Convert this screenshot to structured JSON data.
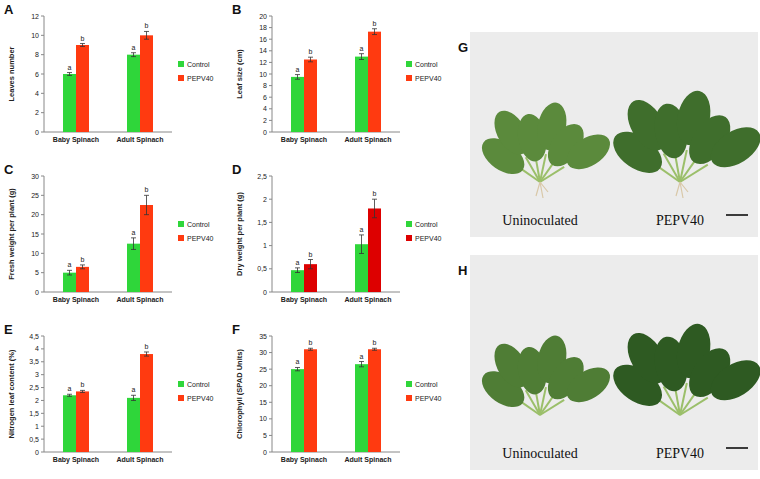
{
  "chart_data": [
    {
      "type": "bar",
      "title": "A",
      "y_label": "Leaves number",
      "categories": [
        "Baby Spinach",
        "Adult Spinach"
      ],
      "series": [
        {
          "name": "Control",
          "color": "#2fd63a",
          "values": [
            6,
            8
          ],
          "errors": [
            0.15,
            0.2
          ],
          "annotations": [
            "a",
            "a"
          ]
        },
        {
          "name": "PEPV40",
          "color": "#ff3a10",
          "values": [
            9,
            10
          ],
          "errors": [
            0.15,
            0.4
          ],
          "annotations": [
            "b",
            "b"
          ]
        }
      ],
      "ylim": [
        0,
        12
      ],
      "yticks": [
        0,
        2,
        4,
        6,
        8,
        10,
        12
      ],
      "grid": false,
      "legend": "right"
    },
    {
      "type": "bar",
      "title": "B",
      "y_label": "Leaf size (cm)",
      "categories": [
        "Baby Spinach",
        "Adult Spinach"
      ],
      "series": [
        {
          "name": "Control",
          "color": "#2fd63a",
          "values": [
            9.5,
            13
          ],
          "errors": [
            0.4,
            0.5
          ],
          "annotations": [
            "a",
            "a"
          ]
        },
        {
          "name": "PEPV40",
          "color": "#ff3a10",
          "values": [
            12.5,
            17.3
          ],
          "errors": [
            0.4,
            0.5
          ],
          "annotations": [
            "b",
            "b"
          ]
        }
      ],
      "ylim": [
        0,
        20
      ],
      "yticks": [
        0,
        2,
        4,
        6,
        8,
        10,
        12,
        14,
        16,
        18,
        20
      ],
      "grid": false,
      "legend": "right"
    },
    {
      "type": "bar",
      "title": "C",
      "y_label": "Fresh weight per plant (g)",
      "categories": [
        "Baby Spinach",
        "Adult Spinach"
      ],
      "series": [
        {
          "name": "Control",
          "color": "#2fd63a",
          "values": [
            5,
            12.5
          ],
          "errors": [
            0.6,
            1.5
          ],
          "annotations": [
            "a",
            "a"
          ]
        },
        {
          "name": "PEPV40",
          "color": "#ff3a10",
          "values": [
            6.5,
            22.5
          ],
          "errors": [
            0.5,
            2.5
          ],
          "annotations": [
            "b",
            "b"
          ]
        }
      ],
      "ylim": [
        0,
        30
      ],
      "yticks": [
        0,
        5,
        10,
        15,
        20,
        25,
        30
      ],
      "grid": false,
      "legend": "right"
    },
    {
      "type": "bar",
      "title": "D",
      "y_label": "Dry weight per plant (g)",
      "categories": [
        "Baby Spinach",
        "Adult Spinach"
      ],
      "series": [
        {
          "name": "Control",
          "color": "#2fd63a",
          "values": [
            0.47,
            1.03
          ],
          "errors": [
            0.05,
            0.2
          ],
          "annotations": [
            "a",
            "a"
          ]
        },
        {
          "name": "PEPV40",
          "color": "#dd0000",
          "values": [
            0.6,
            1.8
          ],
          "errors": [
            0.1,
            0.2
          ],
          "annotations": [
            "b",
            "b"
          ]
        }
      ],
      "ylim": [
        0,
        2.5
      ],
      "yticks": [
        0,
        {
          "value": 0.5,
          "label": "0,5"
        },
        1,
        {
          "value": 1.5,
          "label": "1,5"
        },
        2,
        {
          "value": 2.5,
          "label": "2,5"
        }
      ],
      "grid": false,
      "legend": "right"
    },
    {
      "type": "bar",
      "title": "E",
      "y_label": "Nitrogen leaf content (%)",
      "categories": [
        "Baby Spinach",
        "Adult Spinach"
      ],
      "series": [
        {
          "name": "Control",
          "color": "#2fd63a",
          "values": [
            2.2,
            2.1
          ],
          "errors": [
            0.04,
            0.1
          ],
          "annotations": [
            "a",
            "a"
          ]
        },
        {
          "name": "PEPV40",
          "color": "#ff3a10",
          "values": [
            2.35,
            3.8
          ],
          "errors": [
            0.04,
            0.08
          ],
          "annotations": [
            "b",
            "b"
          ]
        }
      ],
      "ylim": [
        0,
        4.5
      ],
      "yticks": [
        0,
        {
          "value": 0.5,
          "label": "0,5"
        },
        1,
        {
          "value": 1.5,
          "label": "1,5"
        },
        2,
        {
          "value": 2.5,
          "label": "2,5"
        },
        3,
        {
          "value": 3.5,
          "label": "3,5"
        },
        4,
        {
          "value": 4.5,
          "label": "4,5"
        }
      ],
      "grid": false,
      "legend": "right"
    },
    {
      "type": "bar",
      "title": "F",
      "y_label": "Chlorophyll (SPAD Units)",
      "categories": [
        "Baby Spinach",
        "Adult Spinach"
      ],
      "series": [
        {
          "name": "Control",
          "color": "#2fd63a",
          "values": [
            25,
            26.5
          ],
          "errors": [
            0.5,
            0.8
          ],
          "annotations": [
            "a",
            "a"
          ]
        },
        {
          "name": "PEPV40",
          "color": "#ff3a10",
          "values": [
            31,
            31
          ],
          "errors": [
            0.3,
            0.3
          ],
          "annotations": [
            "b",
            "b"
          ]
        }
      ],
      "ylim": [
        0,
        35
      ],
      "yticks": [
        0,
        5,
        10,
        15,
        20,
        25,
        30,
        35
      ],
      "grid": false,
      "legend": "right"
    }
  ],
  "photos": [
    {
      "panel": "G",
      "labels": [
        "Uninoculated",
        "PEPV40"
      ]
    },
    {
      "panel": "H",
      "labels": [
        "Uninoculated",
        "PEPV40"
      ]
    }
  ]
}
